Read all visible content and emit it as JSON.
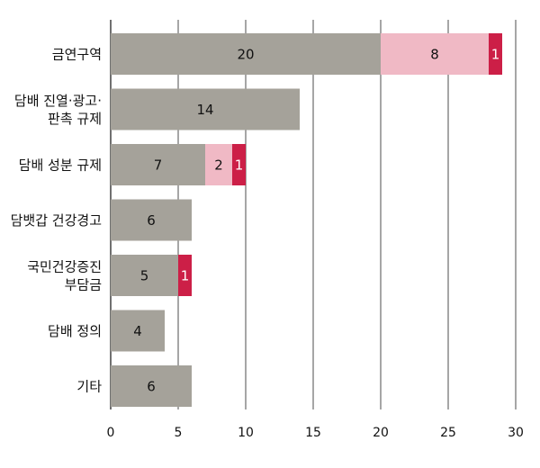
{
  "chart_data": {
    "type": "bar",
    "orientation": "horizontal",
    "stacked": true,
    "categories": [
      [
        "금연구역"
      ],
      [
        "담배 진열·광고·",
        "판촉 규제"
      ],
      [
        "담배 성분 규제"
      ],
      [
        "담뱃갑 건강경고"
      ],
      [
        "국민건강증진",
        "부담금"
      ],
      [
        "담배 정의"
      ],
      [
        "기타"
      ]
    ],
    "series": [
      {
        "values": [
          20,
          14,
          7,
          6,
          5,
          4,
          6
        ],
        "color": "#a5a29a",
        "label_color": "#111111"
      },
      {
        "values": [
          8,
          0,
          2,
          0,
          0,
          0,
          0
        ],
        "color": "#f0b9c5",
        "label_color": "#111111"
      },
      {
        "values": [
          1,
          0,
          1,
          0,
          1,
          0,
          0
        ],
        "color": "#cc1f47",
        "label_color": "#ffffff"
      }
    ],
    "x_ticks": [
      0,
      5,
      10,
      15,
      20,
      25,
      30
    ],
    "xlim": [
      0,
      30
    ],
    "grid": "vertical",
    "legend": "none"
  },
  "colors": {
    "gridline": "#4d4d4d",
    "axis": "#333333",
    "text": "#111111"
  }
}
